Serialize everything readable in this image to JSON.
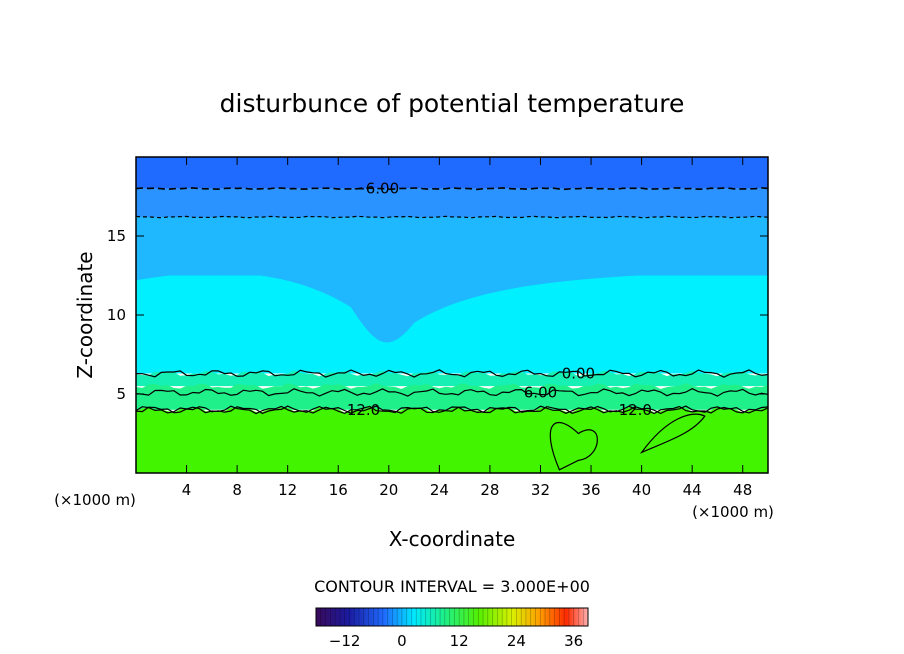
{
  "chart_data": {
    "type": "heatmap",
    "title": "disturbunce of potential temperature",
    "xlabel": "X-coordinate",
    "ylabel": "Z-coordinate",
    "x_unit_left": "(×1000 m)",
    "x_unit_right": "(×1000 m)",
    "xlim": [
      0,
      50
    ],
    "ylim": [
      0,
      20
    ],
    "x_ticks": [
      4,
      8,
      12,
      16,
      20,
      24,
      28,
      32,
      36,
      40,
      44,
      48
    ],
    "y_ticks": [
      5,
      10,
      15
    ],
    "contour_interval_text": "CONTOUR INTERVAL = 3.000E+00",
    "colorbar": {
      "range": [
        -18,
        39
      ],
      "ticks": [
        -12,
        0,
        12,
        24,
        36
      ],
      "tick_labels": [
        "−12",
        "0",
        "12",
        "24",
        "36"
      ]
    },
    "contours": [
      {
        "label": "−6.00",
        "z": 18.0,
        "style": "dashed",
        "label_x": 19
      },
      {
        "label": "",
        "z": 16.2,
        "style": "dashed",
        "label_x": null
      },
      {
        "label": "0.00",
        "z": 6.3,
        "style": "solid",
        "label_x": 35
      },
      {
        "label": "6.00",
        "z": 5.1,
        "style": "solid",
        "label_x": 32
      },
      {
        "label": "12.0",
        "z": 4.0,
        "style": "solid",
        "label_x": 18
      },
      {
        "label": "12.0",
        "z": 4.0,
        "style": "solid",
        "label_x": 39.5
      }
    ],
    "regions": [
      {
        "z_range": [
          18.0,
          20.0
        ],
        "value": -7.5,
        "color": "#1f6bff"
      },
      {
        "z_range": [
          16.2,
          18.0
        ],
        "value": -4.5,
        "color": "#2a93ff"
      },
      {
        "z_range": [
          12.5,
          16.2
        ],
        "value": -1.5,
        "color": "#1fb8ff"
      },
      {
        "z_range": [
          6.3,
          12.5
        ],
        "value": 1.5,
        "color": "#00f0ff"
      },
      {
        "z_range": [
          5.5,
          6.3
        ],
        "value": 4.5,
        "color": "#16f0b4"
      },
      {
        "z_range": [
          4.0,
          5.5
        ],
        "value": 7.5,
        "color": "#1ff08a"
      },
      {
        "z_range": [
          0.0,
          4.0
        ],
        "value": 13.5,
        "color": "#43f400"
      }
    ],
    "colors": {
      "top_band": "#1f6bff",
      "mid_blue": "#1fb8ff",
      "cyan": "#00f0ff",
      "green": "#43f400"
    }
  }
}
